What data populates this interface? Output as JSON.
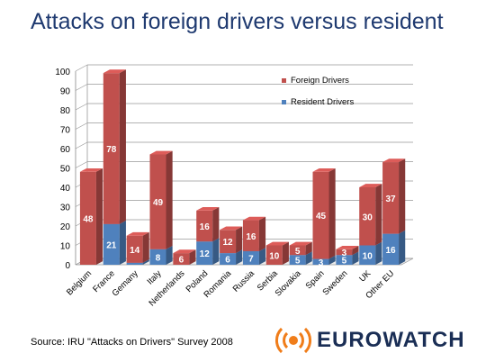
{
  "title": "Attacks on foreign drivers versus resident",
  "source": "Source: IRU \"Attacks on Drivers\" Survey 2008",
  "logo": {
    "text": "EUROWATCH",
    "icon": "radio-waves-icon"
  },
  "colors": {
    "foreign": "#c0504d",
    "resident": "#4f81bd",
    "title": "#1f3a70"
  },
  "chart_data": {
    "type": "bar",
    "stacked": true,
    "three_d": true,
    "categories": [
      "Belgium",
      "France",
      "Gemany",
      "Italy",
      "Netherlands",
      "Poland",
      "Romania",
      "Russia",
      "Serbia",
      "Slovakia",
      "Spain",
      "Sweden",
      "UK",
      "Other EU"
    ],
    "series": [
      {
        "name": "Resident Drivers",
        "values": [
          0,
          21,
          1,
          8,
          0,
          12,
          6,
          7,
          0,
          5,
          3,
          5,
          10,
          16
        ],
        "labels": [
          "",
          "21",
          "",
          "8",
          "",
          "12",
          "6",
          "7",
          "",
          "5",
          "3",
          "5",
          "10",
          "16"
        ]
      },
      {
        "name": "Foreign Drivers",
        "values": [
          48,
          78,
          14,
          49,
          6,
          16,
          12,
          16,
          10,
          5,
          45,
          3,
          30,
          37
        ],
        "labels": [
          "48",
          "78",
          "14",
          "49",
          "6",
          "16",
          "12",
          "16",
          "10",
          "5",
          "45",
          "3",
          "30",
          "37"
        ]
      }
    ],
    "legend_order": [
      "Foreign Drivers",
      "Resident Drivers"
    ],
    "ylim": [
      0,
      100
    ],
    "yticks": [
      "0",
      "10",
      "20",
      "30",
      "40",
      "50",
      "60",
      "70",
      "80",
      "90",
      "100"
    ],
    "grid": true,
    "legend_position": "top-right"
  }
}
